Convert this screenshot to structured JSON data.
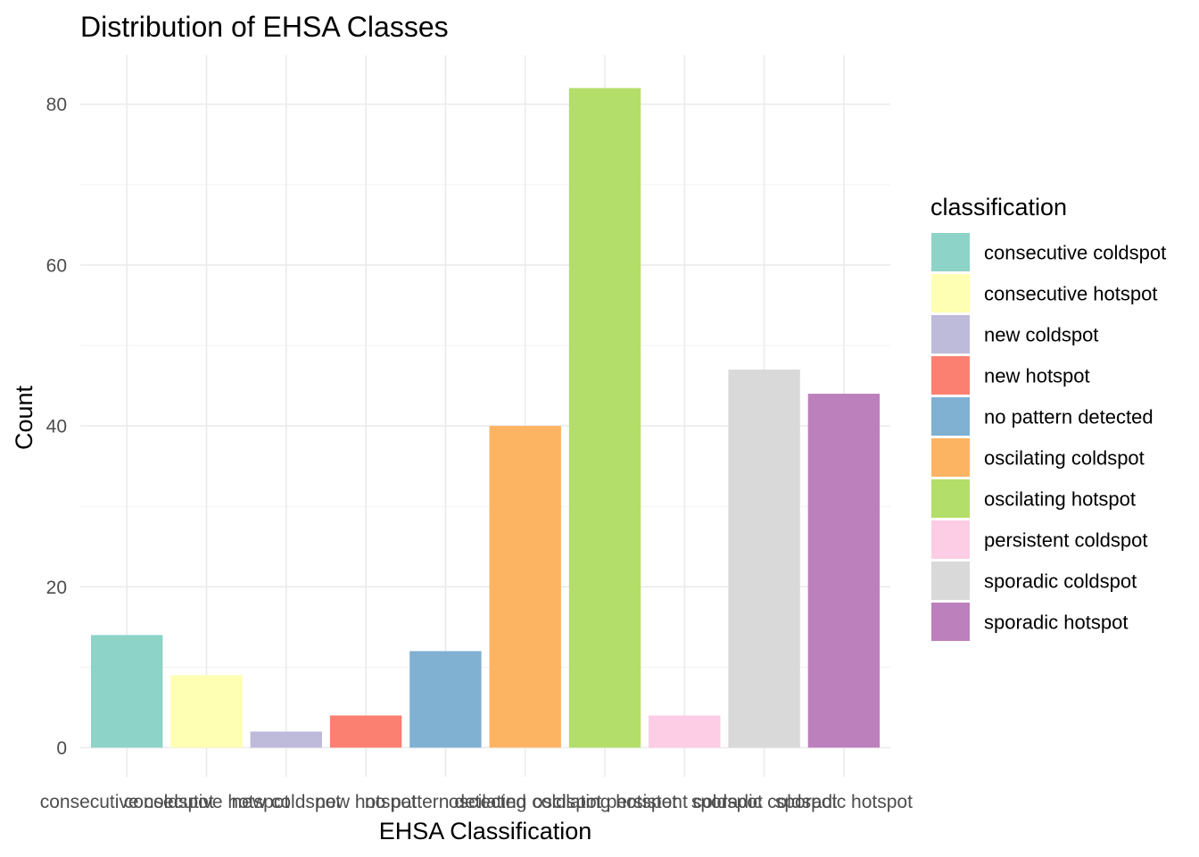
{
  "chart_data": {
    "type": "bar",
    "title": "Distribution of EHSA Classes",
    "xlabel": "EHSA Classification",
    "ylabel": "Count",
    "categories": [
      "consecutive coldspot",
      "consecutive hotspot",
      "new coldspot",
      "new hotspot",
      "no pattern detected",
      "oscilating coldspot",
      "oscilating hotspot",
      "persistent coldspot",
      "sporadic coldspot",
      "sporadic hotspot"
    ],
    "values": [
      14,
      9,
      2,
      4,
      12,
      40,
      82,
      4,
      47,
      44
    ],
    "colors": [
      "#8dd3c7",
      "#ffffb3",
      "#bebada",
      "#fb8072",
      "#80b1d3",
      "#fdb462",
      "#b3de69",
      "#fccde5",
      "#d9d9d9",
      "#bc80bd"
    ],
    "ylim": [
      0,
      86
    ],
    "yticks": [
      0,
      20,
      40,
      60,
      80
    ],
    "grid": true,
    "legend": {
      "title": "classification",
      "position": "right"
    }
  }
}
